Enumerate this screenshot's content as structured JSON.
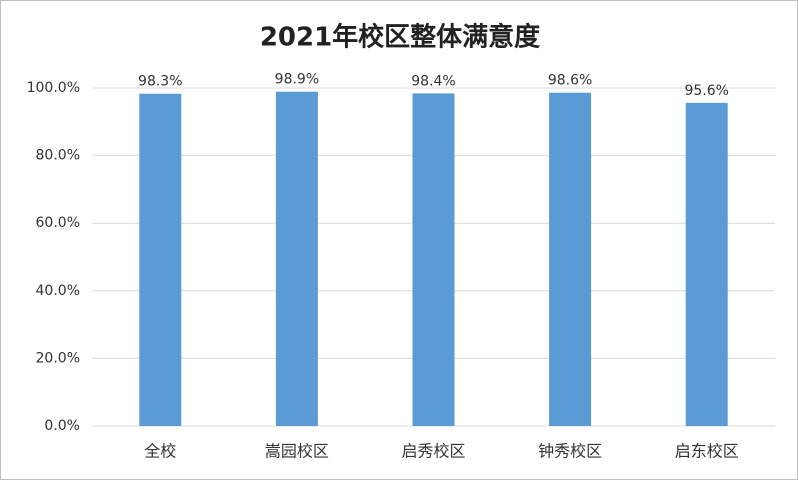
{
  "chart_data": {
    "type": "bar",
    "title": "2021年校区整体满意度",
    "categories": [
      "全校",
      "嵩园校区",
      "启秀校区",
      "钟秀校区",
      "启东校区"
    ],
    "values": [
      98.3,
      98.9,
      98.4,
      98.6,
      95.6
    ],
    "value_labels": [
      "98.3%",
      "98.9%",
      "98.4%",
      "98.6%",
      "95.6%"
    ],
    "color": "#5b9bd5",
    "ylim": [
      0,
      100
    ],
    "yticks": [
      {
        "value": 0,
        "label": "0.0%"
      },
      {
        "value": 20,
        "label": "20.0%"
      },
      {
        "value": 40,
        "label": "40.0%"
      },
      {
        "value": 60,
        "label": "60.0%"
      },
      {
        "value": 80,
        "label": "80.0%"
      },
      {
        "value": 100,
        "label": "100.0%"
      }
    ],
    "grid": true
  }
}
